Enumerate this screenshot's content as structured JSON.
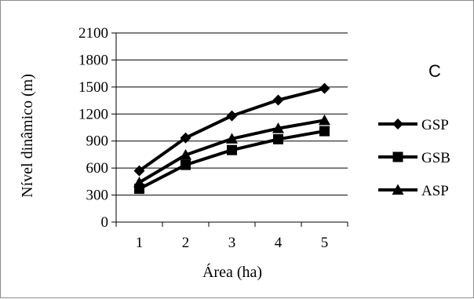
{
  "panel_label": "C",
  "chart_data": {
    "type": "line",
    "x": [
      1,
      2,
      3,
      4,
      5
    ],
    "xlabel": "Área (ha)",
    "ylabel": "Nível dinâmico (m)",
    "xticks": [
      "1",
      "2",
      "3",
      "4",
      "5"
    ],
    "yticks": [
      "0",
      "300",
      "600",
      "900",
      "1200",
      "1500",
      "1800",
      "2100"
    ],
    "ylim": [
      0,
      2100
    ],
    "grid": "horizontal",
    "legend_position": "right",
    "series": [
      {
        "name": "GSP",
        "marker": "diamond",
        "color": "#000000",
        "values": [
          570,
          935,
          1180,
          1355,
          1485
        ]
      },
      {
        "name": "GSB",
        "marker": "square",
        "color": "#000000",
        "values": [
          370,
          635,
          800,
          920,
          1010
        ]
      },
      {
        "name": "ASP",
        "marker": "triangle",
        "color": "#000000",
        "values": [
          440,
          745,
          925,
          1040,
          1130
        ]
      }
    ]
  }
}
